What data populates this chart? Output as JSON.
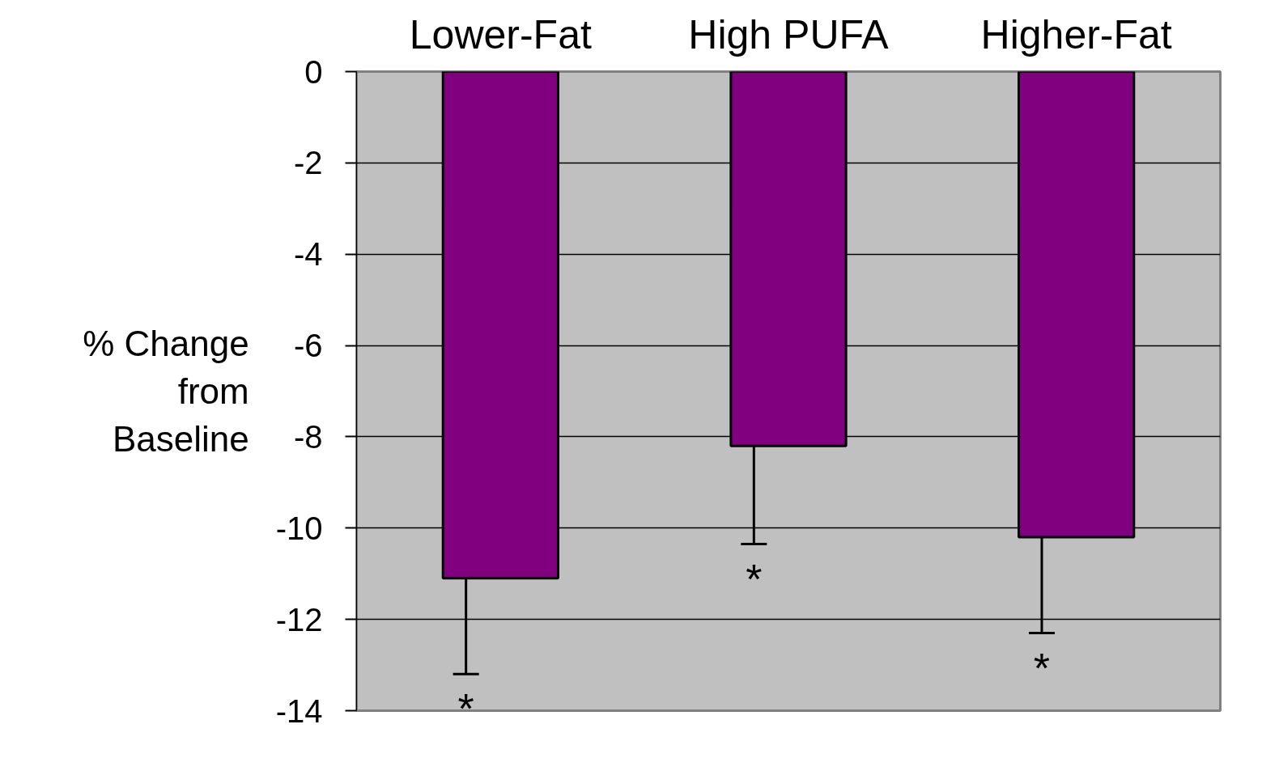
{
  "chart_data": {
    "type": "bar",
    "ylabel": "% Change\nfrom\nBaseline",
    "categories": [
      "Lower-Fat",
      "High PUFA",
      "Higher-Fat"
    ],
    "values": [
      -11.1,
      -8.2,
      -10.2
    ],
    "errors": [
      [
        -13.2,
        -11.1
      ],
      [
        -10.35,
        -8.2
      ],
      [
        -12.3,
        -10.2
      ]
    ],
    "color": "#800080",
    "ylim": [
      -14,
      0
    ],
    "yticks": [
      0,
      -2,
      -4,
      -6,
      -8,
      -10,
      -12,
      -14
    ],
    "grid": "y",
    "annotations": [
      "*",
      "*",
      "*"
    ]
  }
}
